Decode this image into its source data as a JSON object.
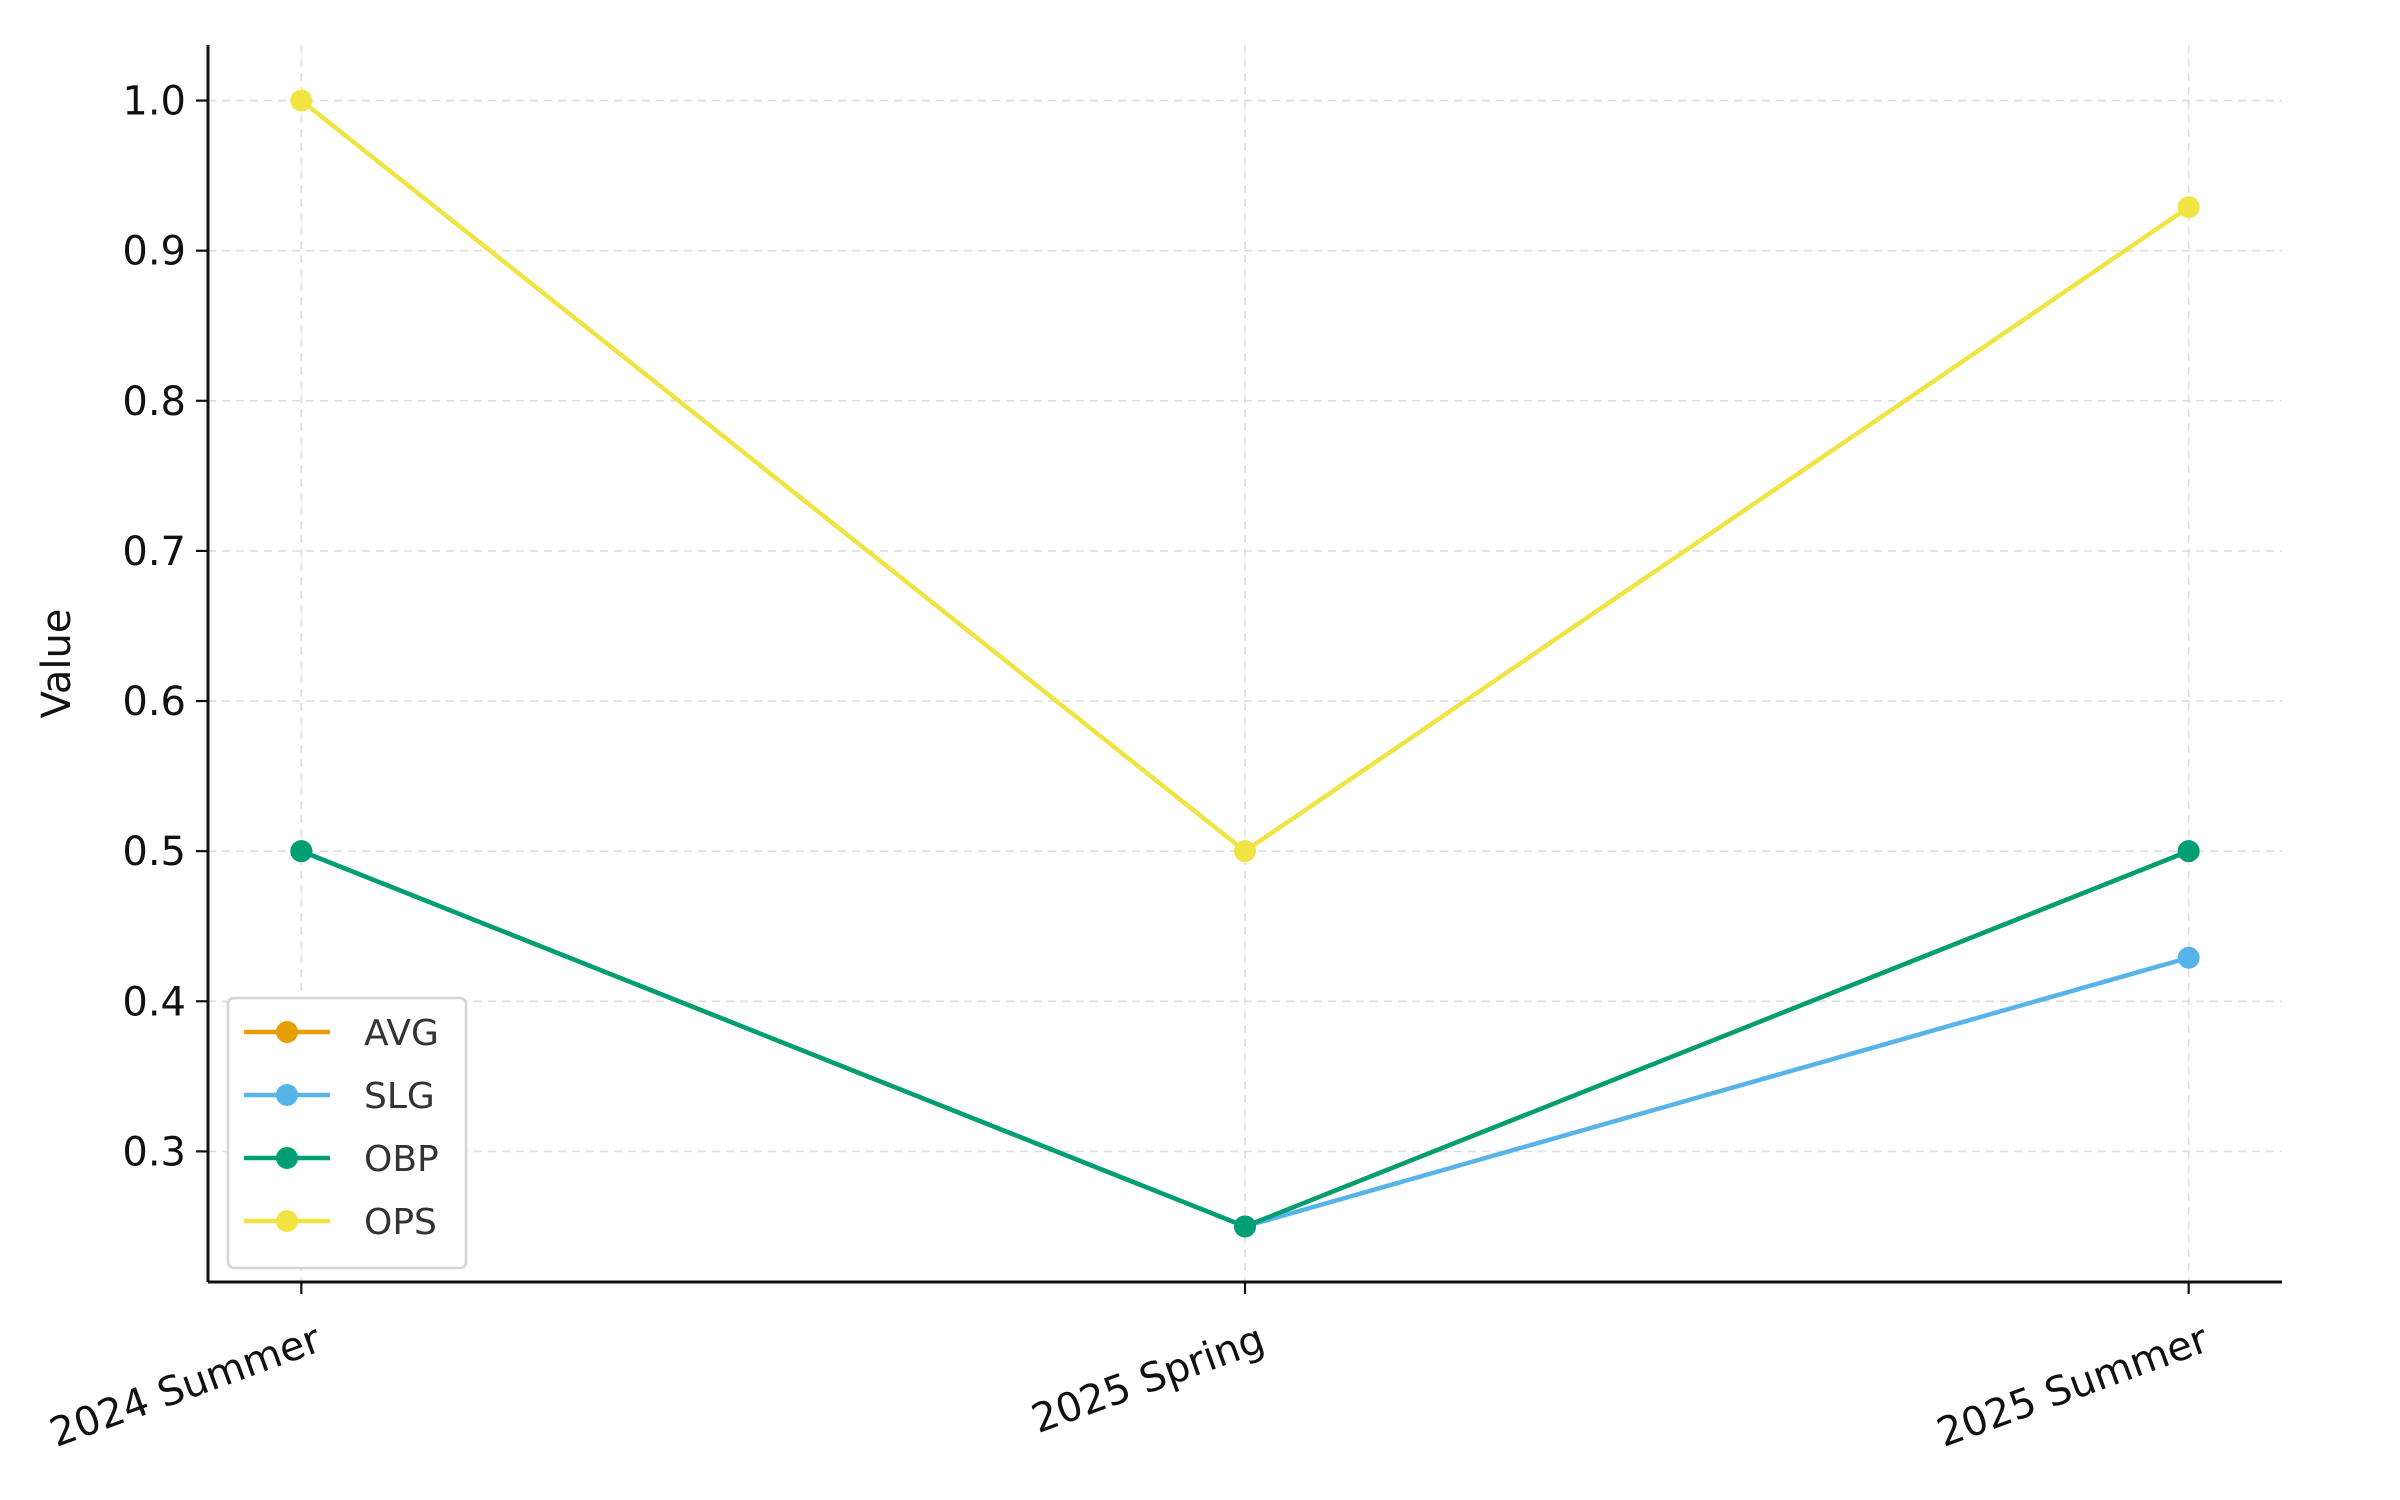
{
  "chart_data": {
    "type": "line",
    "title": "",
    "xlabel": "",
    "ylabel": "Value",
    "categories": [
      "2024 Summer",
      "2025 Spring",
      "2025 Summer"
    ],
    "ylim": [
      0.213,
      1.037
    ],
    "yticks": [
      0.3,
      0.4,
      0.5,
      0.6,
      0.7,
      0.8,
      0.9,
      1.0
    ],
    "ytick_labels": [
      "0.3",
      "0.4",
      "0.5",
      "0.6",
      "0.7",
      "0.8",
      "0.9",
      "1.0"
    ],
    "grid": true,
    "legend_position": "lower-left",
    "series": [
      {
        "name": "AVG",
        "color": "#E69F00",
        "values": [
          0.5,
          0.25,
          0.5
        ]
      },
      {
        "name": "SLG",
        "color": "#56B4E9",
        "values": [
          0.5,
          0.25,
          0.429
        ]
      },
      {
        "name": "OBP",
        "color": "#009E73",
        "values": [
          0.5,
          0.25,
          0.5
        ]
      },
      {
        "name": "OPS",
        "color": "#F0E442",
        "values": [
          1.0,
          0.5,
          0.929
        ]
      }
    ]
  }
}
